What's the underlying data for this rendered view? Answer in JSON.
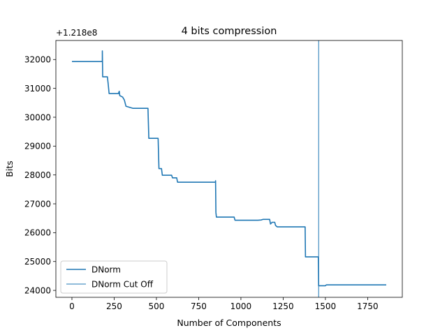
{
  "chart_data": {
    "type": "line",
    "title": "4 bits compression",
    "xlabel": "Number of Components",
    "ylabel": "Bits",
    "offset_label": "+1.218e8",
    "xlim": [
      -95,
      1955
    ],
    "ylim": [
      23760,
      32660
    ],
    "xticks": [
      0,
      250,
      500,
      750,
      1000,
      1250,
      1500,
      1750
    ],
    "xtick_labels": [
      "0",
      "250",
      "500",
      "750",
      "1000",
      "1250",
      "1500",
      "1750"
    ],
    "yticks": [
      24000,
      25000,
      26000,
      27000,
      28000,
      29000,
      30000,
      31000,
      32000
    ],
    "ytick_labels": [
      "24000",
      "25000",
      "26000",
      "27000",
      "28000",
      "29000",
      "30000",
      "31000",
      "32000"
    ],
    "legend_position": "lower left",
    "series": [
      {
        "name": "DNorm",
        "color": "#1f77b4",
        "points": [
          [
            0,
            31930
          ],
          [
            180,
            31930
          ],
          [
            180,
            32300
          ],
          [
            182,
            31400
          ],
          [
            210,
            31400
          ],
          [
            215,
            31130
          ],
          [
            220,
            30820
          ],
          [
            275,
            30820
          ],
          [
            280,
            30900
          ],
          [
            283,
            30750
          ],
          [
            300,
            30700
          ],
          [
            310,
            30600
          ],
          [
            320,
            30380
          ],
          [
            360,
            30310
          ],
          [
            450,
            30310
          ],
          [
            455,
            29270
          ],
          [
            510,
            29270
          ],
          [
            515,
            28220
          ],
          [
            530,
            28220
          ],
          [
            535,
            27990
          ],
          [
            590,
            27990
          ],
          [
            595,
            27900
          ],
          [
            620,
            27900
          ],
          [
            625,
            27750
          ],
          [
            850,
            27750
          ],
          [
            850,
            27800
          ],
          [
            852,
            26700
          ],
          [
            855,
            26540
          ],
          [
            960,
            26540
          ],
          [
            965,
            26430
          ],
          [
            1100,
            26430
          ],
          [
            1120,
            26440
          ],
          [
            1130,
            26460
          ],
          [
            1170,
            26460
          ],
          [
            1175,
            26300
          ],
          [
            1185,
            26360
          ],
          [
            1200,
            26360
          ],
          [
            1205,
            26250
          ],
          [
            1215,
            26200
          ],
          [
            1380,
            26200
          ],
          [
            1382,
            25160
          ],
          [
            1458,
            25160
          ],
          [
            1460,
            24160
          ],
          [
            1500,
            24160
          ],
          [
            1505,
            24190
          ],
          [
            1860,
            24190
          ]
        ]
      }
    ],
    "vlines": [
      {
        "name": "DNorm Cut Off",
        "x": 1460,
        "color": "#1f77b4"
      }
    ]
  }
}
